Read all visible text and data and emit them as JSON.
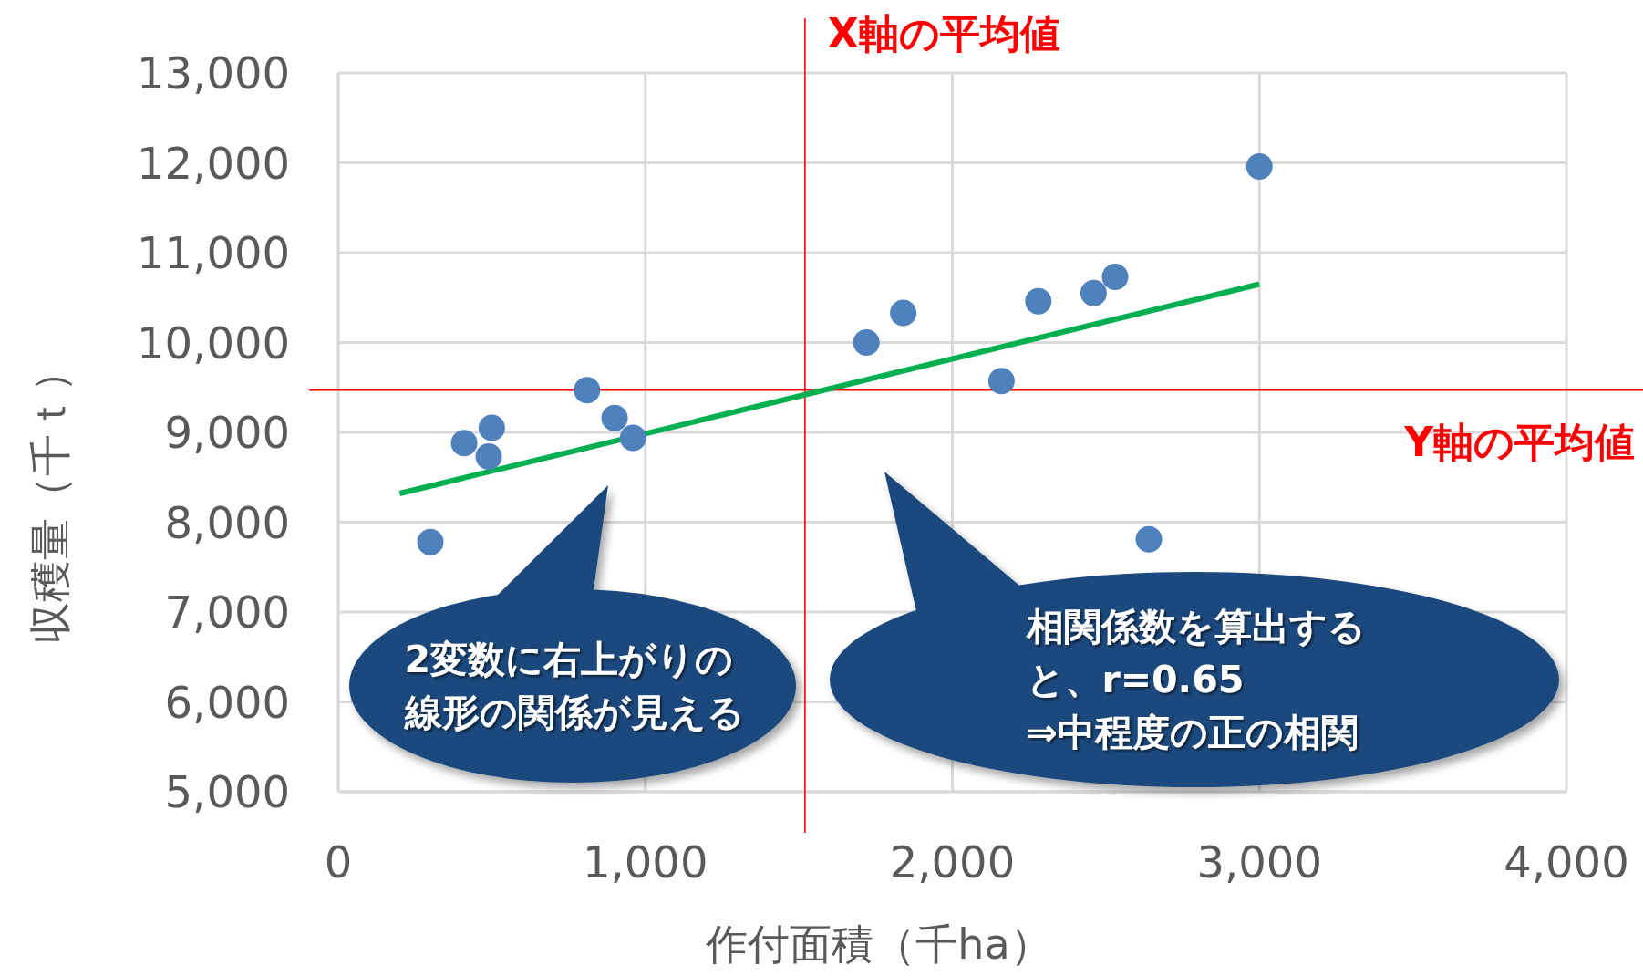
{
  "chart_data": {
    "type": "scatter",
    "xlabel": "作付面積（千ha）",
    "ylabel": "収穫量（千ｔ）",
    "xlim": [
      0,
      4000
    ],
    "xticks": [
      0,
      {
        "value": 1000,
        "label": "1,000"
      },
      {
        "value": 2000,
        "label": "2,000"
      },
      {
        "value": 3000,
        "label": "3,000"
      },
      {
        "value": 4000,
        "label": "4,000"
      }
    ],
    "ylim": [
      5000,
      13000
    ],
    "yticks": [
      {
        "value": 5000,
        "label": "5,000"
      },
      {
        "value": 6000,
        "label": "6,000"
      },
      {
        "value": 7000,
        "label": "7,000"
      },
      {
        "value": 8000,
        "label": "8,000"
      },
      {
        "value": 9000,
        "label": "9,000"
      },
      {
        "value": 10000,
        "label": "10,000"
      },
      {
        "value": 11000,
        "label": "11,000"
      },
      {
        "value": 12000,
        "label": "12,000"
      },
      {
        "value": 13000,
        "label": "13,000"
      }
    ],
    "grid": true,
    "marker": "circle",
    "series": [
      {
        "color": "#4f81bd",
        "x": [
          300,
          410,
          500,
          490,
          810,
          900,
          960,
          1720,
          1840,
          2160,
          2280,
          2460,
          2530,
          2640,
          3000
        ],
        "values": [
          7780,
          8880,
          9050,
          8730,
          9470,
          9160,
          8940,
          10000,
          10330,
          9570,
          10460,
          10550,
          10730,
          7810,
          11960
        ]
      },
      {
        "type": "line",
        "color": "#00b050",
        "marker": "none",
        "x": [
          200,
          3000
        ],
        "values": [
          8320,
          10650
        ]
      }
    ],
    "ref_lines": [
      {
        "axis": "x",
        "value": 1520,
        "label": "X軸の平均値",
        "color": "#ff0000"
      },
      {
        "axis": "y",
        "value": 9470,
        "label": "Y軸の平均値",
        "color": "#ff0000"
      }
    ],
    "annotations": [
      "2変数に右上がりの線形の関係が見える",
      "相関係数を算出すると、r=0.65\n⇒中程度の正の相関"
    ]
  }
}
